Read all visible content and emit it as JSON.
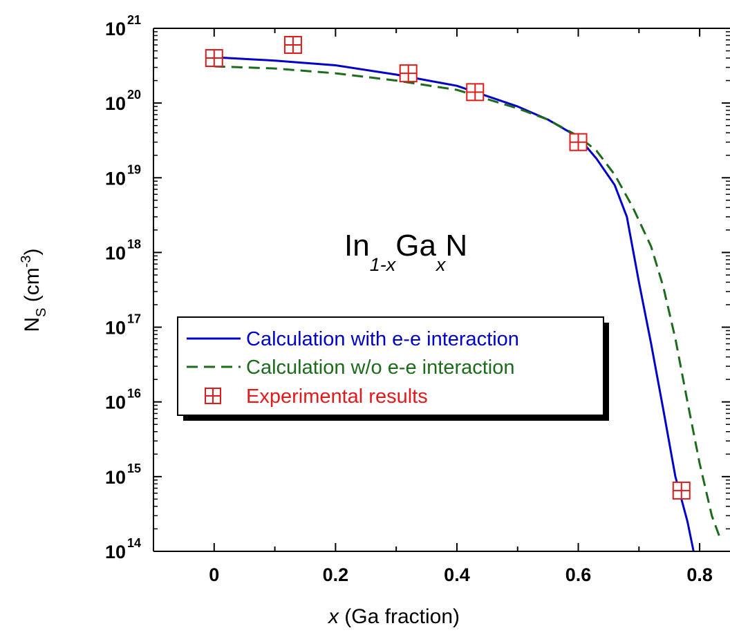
{
  "chart_data": {
    "type": "line",
    "xlabel_italic": "x",
    "xlabel_rest": " (Ga fraction)",
    "ylabel_main": "N",
    "ylabel_sub": "S",
    "ylabel_unit_open": " (cm",
    "ylabel_unit_exp": "-3",
    "ylabel_unit_close": ")",
    "xlim": [
      -0.1,
      0.85
    ],
    "ylim": [
      100000000000000.0,
      1e+21
    ],
    "y_scale": "log",
    "x_ticks": [
      0,
      0.2,
      0.4,
      0.6,
      0.8
    ],
    "x_tick_labels": [
      "0",
      "0.2",
      "0.4",
      "0.6",
      "0.8"
    ],
    "y_ticks": [
      14,
      15,
      16,
      17,
      18,
      19,
      20,
      21
    ],
    "y_tick_base": "10",
    "y_tick_exponents": [
      "14",
      "15",
      "16",
      "17",
      "18",
      "19",
      "20",
      "21"
    ],
    "annotation": {
      "in": "In",
      "sub1": "1-x",
      "ga": "Ga",
      "sub2": "x",
      "n": "N"
    },
    "legend_position": "center-left",
    "series": [
      {
        "name": "Calculation with e-e interaction",
        "style": "solid",
        "color": "#0000cc",
        "x": [
          0,
          0.1,
          0.2,
          0.3,
          0.4,
          0.5,
          0.55,
          0.6,
          0.63,
          0.66,
          0.68,
          0.7,
          0.72,
          0.74,
          0.76,
          0.78,
          0.79
        ],
        "y": [
          4.1e+20,
          3.7e+20,
          3.2e+20,
          2.4e+20,
          1.7e+20,
          9e+19,
          6e+19,
          3.5e+19,
          1.8e+19,
          8e+18,
          3e+18,
          4e+17,
          6e+16,
          8000000000000000.0,
          1000000000000000.0,
          250000000000000.0,
          100000000000000.0
        ]
      },
      {
        "name": "Calculation w/o e-e interaction",
        "style": "dashed",
        "color": "#1a6b1a",
        "x": [
          0,
          0.1,
          0.2,
          0.3,
          0.4,
          0.5,
          0.55,
          0.6,
          0.63,
          0.66,
          0.69,
          0.72,
          0.74,
          0.76,
          0.78,
          0.8,
          0.82,
          0.835
        ],
        "y": [
          3.1e+20,
          2.9e+20,
          2.5e+20,
          2e+20,
          1.5e+20,
          8.5e+19,
          6e+19,
          3.6e+19,
          2.3e+19,
          1.1e+19,
          4e+18,
          1.2e+18,
          3.5e+17,
          7e+16,
          1e+16,
          1500000000000000.0,
          300000000000000.0,
          140000000000000.0
        ]
      },
      {
        "name": "Experimental results",
        "style": "marker",
        "color": "#e31a1a",
        "x": [
          0,
          0.13,
          0.32,
          0.43,
          0.6,
          0.77
        ],
        "y": [
          4e+20,
          6e+20,
          2.5e+20,
          1.4e+20,
          3e+19,
          650000000000000.0
        ]
      }
    ]
  }
}
